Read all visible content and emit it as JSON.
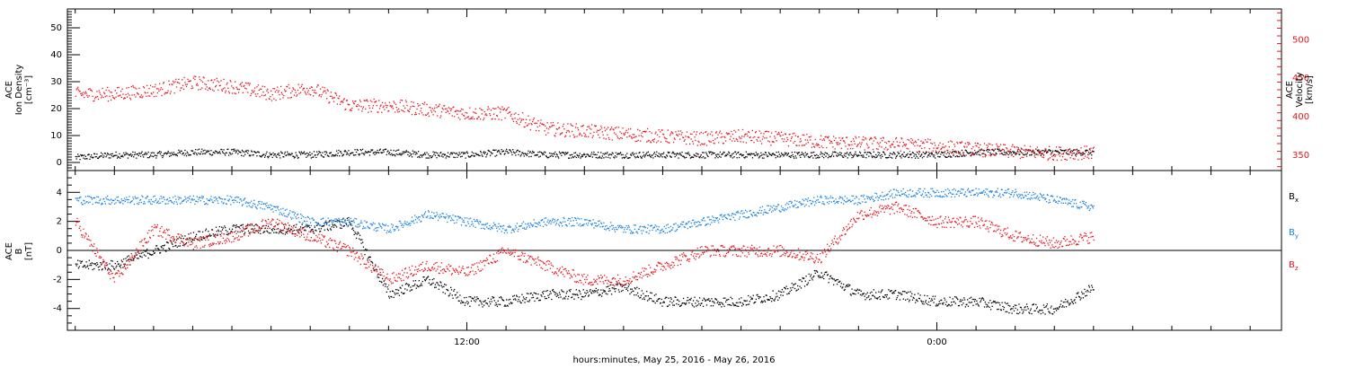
{
  "footer": {
    "xlabel": "hours:minutes, May 25, 2016 - May 26, 2016"
  },
  "x_ticks": [
    "12:00",
    "0:00"
  ],
  "chart_data": [
    {
      "type": "scatter",
      "panel": "top",
      "ylabel_lines": [
        "ACE",
        "Ion Density",
        "[cm⁻³]"
      ],
      "ylabel_right_lines": [
        "ACE",
        "Velocity",
        "[km/s]"
      ],
      "x_axis": "hours since 2016-05-25 00:00",
      "xlim": [
        1.8,
        32.8
      ],
      "ylim": [
        -3,
        57
      ],
      "ylim_right": [
        330,
        540
      ],
      "yticks": [
        0,
        10,
        20,
        30,
        40,
        50
      ],
      "yticks_right": [
        350,
        400,
        450,
        500
      ],
      "grid": false,
      "series": [
        {
          "name": "Ion Density",
          "axis": "left",
          "color": "#000000",
          "x": [
            2,
            3,
            4,
            5,
            6,
            7,
            8,
            9,
            10,
            11,
            12,
            13,
            14,
            15,
            16,
            17,
            18,
            19,
            20,
            21,
            22,
            23,
            24,
            25,
            26,
            27,
            28
          ],
          "y": [
            2,
            3,
            3,
            4,
            4,
            3,
            3,
            4,
            4,
            3,
            3,
            4,
            3,
            3,
            3,
            3,
            3,
            3,
            3,
            3,
            3,
            3,
            3,
            4,
            4,
            4,
            4
          ]
        },
        {
          "name": "Velocity",
          "axis": "right",
          "color": "#e8141b",
          "x": [
            2,
            3,
            4,
            5,
            6,
            7,
            8,
            9,
            10,
            11,
            12,
            13,
            14,
            15,
            16,
            17,
            18,
            19,
            20,
            21,
            22,
            23,
            24,
            25,
            26,
            27,
            28
          ],
          "y": [
            430,
            430,
            435,
            445,
            440,
            430,
            438,
            415,
            415,
            410,
            405,
            405,
            385,
            382,
            378,
            375,
            372,
            375,
            372,
            368,
            366,
            365,
            362,
            358,
            355,
            353,
            354
          ]
        }
      ]
    },
    {
      "type": "scatter",
      "panel": "bottom",
      "ylabel_lines": [
        "ACE",
        "B",
        "[nT]"
      ],
      "xlim": [
        1.8,
        32.8
      ],
      "ylim": [
        -5.5,
        5.5
      ],
      "yticks": [
        -4,
        -2,
        0,
        2,
        4
      ],
      "zero_line": true,
      "grid": false,
      "legend": "right",
      "series": [
        {
          "name": "Bx",
          "color": "#000000",
          "x": [
            2,
            3,
            4,
            5,
            6,
            7,
            8,
            9,
            10,
            11,
            12,
            13,
            14,
            15,
            16,
            17,
            18,
            19,
            20,
            21,
            22,
            23,
            24,
            25,
            26,
            27,
            28
          ],
          "y": [
            -1,
            -1,
            0,
            1,
            1.5,
            1.5,
            1.5,
            2,
            -3,
            -2,
            -3.5,
            -3.5,
            -3,
            -3,
            -2.5,
            -3.5,
            -3.5,
            -3.5,
            -3,
            -1.5,
            -3,
            -3,
            -3.5,
            -3.5,
            -4,
            -4,
            -2.5
          ]
        },
        {
          "name": "By",
          "color": "#1b82e0",
          "x": [
            2,
            3,
            4,
            5,
            6,
            7,
            8,
            9,
            10,
            11,
            12,
            13,
            14,
            15,
            16,
            17,
            18,
            19,
            20,
            21,
            22,
            23,
            24,
            25,
            26,
            27,
            28
          ],
          "y": [
            3.5,
            3.5,
            3.5,
            3.5,
            3.5,
            3,
            2,
            2,
            1.5,
            2.5,
            2,
            1.5,
            2,
            2,
            1.5,
            1.5,
            2,
            2.5,
            3,
            3.5,
            3.5,
            4,
            4,
            4,
            4,
            3.5,
            3
          ]
        },
        {
          "name": "Bz",
          "color": "#e8141b",
          "x": [
            2,
            3,
            4,
            5,
            6,
            7,
            8,
            9,
            10,
            11,
            12,
            13,
            14,
            15,
            16,
            17,
            18,
            19,
            20,
            21,
            22,
            23,
            24,
            25,
            26,
            27,
            28
          ],
          "y": [
            2,
            -2,
            1.5,
            0.5,
            1,
            2,
            1,
            0,
            -2,
            -1,
            -1.5,
            0,
            -1,
            -2,
            -2,
            -1,
            0,
            0,
            0,
            -0.5,
            2.5,
            3,
            2,
            2,
            1,
            0.5,
            1
          ]
        }
      ]
    }
  ]
}
